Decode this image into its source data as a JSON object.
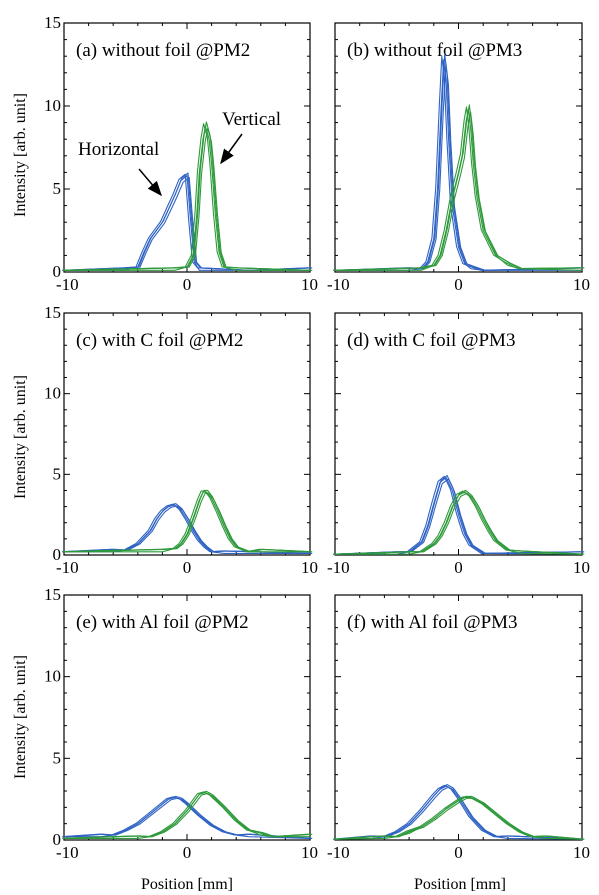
{
  "colors": {
    "horizontal": "#2f63c4",
    "vertical": "#2e9a3b",
    "axis": "#000000"
  },
  "ylabel": "Intensity [arb. unit]",
  "xlabel": "Position [mm]",
  "annotations": {
    "horizontal": "Horizontal",
    "vertical": "Vertical"
  },
  "chart_data": [
    {
      "type": "line",
      "label": "(a) without foil @PM2",
      "xlim": [
        -10,
        10
      ],
      "ylim": [
        0,
        15
      ],
      "xticks": [
        "-10",
        "0",
        "10"
      ],
      "yticks": [
        "0",
        "5",
        "10",
        "15"
      ],
      "series": [
        {
          "name": "Horizontal",
          "x": [
            -10,
            -5,
            -4,
            -3.5,
            -3,
            -2.5,
            -2,
            -1.5,
            -1,
            -0.5,
            0,
            0.3,
            0.6,
            1,
            5,
            10
          ],
          "y": [
            0.1,
            0.1,
            0.3,
            1.2,
            2.0,
            2.5,
            3.0,
            3.8,
            4.6,
            5.5,
            5.8,
            3.0,
            0.6,
            0.1,
            0.1,
            0.1
          ]
        },
        {
          "name": "Vertical",
          "x": [
            -10,
            -1,
            0,
            0.5,
            0.8,
            1,
            1.3,
            1.5,
            1.8,
            2,
            2.3,
            2.6,
            3,
            4,
            10
          ],
          "y": [
            0.1,
            0.1,
            0.3,
            1.0,
            3.5,
            6.0,
            8.0,
            8.8,
            8.0,
            6.5,
            3.5,
            1.2,
            0.3,
            0.1,
            0.1
          ]
        }
      ]
    },
    {
      "type": "line",
      "label": "(b) without foil @PM3",
      "xlim": [
        -10,
        10
      ],
      "ylim": [
        0,
        15
      ],
      "xticks": [
        "-10",
        "0",
        "10"
      ],
      "yticks": [],
      "series": [
        {
          "name": "Horizontal",
          "x": [
            -10,
            -4,
            -3,
            -2.5,
            -2,
            -1.7,
            -1.4,
            -1.2,
            -1,
            -0.8,
            -0.5,
            0,
            0.5,
            1,
            2,
            10
          ],
          "y": [
            0.1,
            0.1,
            0.2,
            0.6,
            2.0,
            5.0,
            10.0,
            12.8,
            11.5,
            8.0,
            4.0,
            1.5,
            0.5,
            0.2,
            0.1,
            0.1
          ]
        },
        {
          "name": "Vertical",
          "x": [
            -10,
            -3,
            -2,
            -1.5,
            -1,
            -0.5,
            0,
            0.3,
            0.6,
            0.8,
            1,
            1.2,
            1.5,
            2,
            3,
            4,
            5,
            10
          ],
          "y": [
            0.1,
            0.1,
            0.4,
            1.0,
            2.5,
            4.5,
            6.0,
            7.0,
            9.0,
            9.8,
            8.5,
            6.5,
            4.5,
            2.5,
            1.0,
            0.4,
            0.2,
            0.1
          ]
        }
      ]
    },
    {
      "type": "line",
      "label": "(c) with C foil @PM2",
      "xlim": [
        -10,
        10
      ],
      "ylim": [
        0,
        15
      ],
      "xticks": [
        "-10",
        "0",
        "10"
      ],
      "yticks": [
        "0",
        "5",
        "10",
        "15"
      ],
      "series": [
        {
          "name": "Horizontal",
          "x": [
            -10,
            -6,
            -5,
            -4,
            -3,
            -2.5,
            -2,
            -1.5,
            -1,
            -0.5,
            0,
            0.5,
            1,
            1.5,
            2,
            3,
            10
          ],
          "y": [
            0.2,
            0.2,
            0.3,
            0.7,
            1.5,
            2.2,
            2.7,
            3.0,
            3.1,
            2.8,
            2.2,
            1.5,
            0.9,
            0.5,
            0.2,
            0.1,
            0.1
          ]
        },
        {
          "name": "Vertical",
          "x": [
            -10,
            -2,
            -1,
            -0.5,
            0,
            0.5,
            1,
            1.3,
            1.6,
            2,
            2.5,
            3,
            3.5,
            4,
            5,
            6,
            10
          ],
          "y": [
            0.2,
            0.2,
            0.4,
            0.7,
            1.3,
            2.3,
            3.4,
            3.9,
            3.9,
            3.5,
            2.7,
            1.8,
            1.0,
            0.5,
            0.2,
            0.2,
            0.2
          ]
        }
      ]
    },
    {
      "type": "line",
      "label": "(d) with C foil @PM3",
      "xlim": [
        -10,
        10
      ],
      "ylim": [
        0,
        15
      ],
      "xticks": [
        "-10",
        "0",
        "10"
      ],
      "yticks": [],
      "series": [
        {
          "name": "Horizontal",
          "x": [
            -10,
            -5,
            -4,
            -3,
            -2.5,
            -2,
            -1.5,
            -1,
            -0.5,
            0,
            0.5,
            1,
            2,
            10
          ],
          "y": [
            0.05,
            0.05,
            0.2,
            0.8,
            1.8,
            3.2,
            4.5,
            4.8,
            4.0,
            2.5,
            1.3,
            0.6,
            0.1,
            0.05
          ]
        },
        {
          "name": "Vertical",
          "x": [
            -10,
            -4,
            -3,
            -2,
            -1.5,
            -1,
            -0.5,
            0,
            0.5,
            1,
            1.5,
            2,
            2.5,
            3,
            4,
            5,
            10
          ],
          "y": [
            0.05,
            0.05,
            0.2,
            0.7,
            1.2,
            2.0,
            3.0,
            3.7,
            3.9,
            3.6,
            3.0,
            2.2,
            1.5,
            0.9,
            0.3,
            0.1,
            0.05
          ]
        }
      ]
    },
    {
      "type": "line",
      "label": "(e) with Al foil @PM2",
      "xlim": [
        -10,
        10
      ],
      "ylim": [
        0,
        15
      ],
      "xticks": [
        "-10",
        "0",
        "10"
      ],
      "yticks": [
        "0",
        "5",
        "10",
        "15"
      ],
      "series": [
        {
          "name": "Horizontal",
          "x": [
            -10,
            -7,
            -6,
            -5,
            -4,
            -3,
            -2,
            -1.5,
            -1,
            -0.5,
            0,
            1,
            2,
            3,
            4,
            5,
            10
          ],
          "y": [
            0.2,
            0.2,
            0.3,
            0.6,
            1.0,
            1.6,
            2.2,
            2.5,
            2.6,
            2.5,
            2.2,
            1.5,
            0.9,
            0.5,
            0.3,
            0.2,
            0.1
          ]
        },
        {
          "name": "Vertical",
          "x": [
            -10,
            -4,
            -3,
            -2,
            -1,
            0,
            0.5,
            1,
            1.5,
            2,
            3,
            4,
            5,
            6,
            7,
            10
          ],
          "y": [
            0.1,
            0.1,
            0.2,
            0.5,
            1.0,
            1.8,
            2.3,
            2.8,
            2.9,
            2.7,
            2.0,
            1.2,
            0.6,
            0.3,
            0.2,
            0.2
          ]
        }
      ]
    },
    {
      "type": "line",
      "label": "(f) with Al foil @PM3",
      "xlim": [
        -10,
        10
      ],
      "ylim": [
        0,
        15
      ],
      "xticks": [
        "-10",
        "0",
        "10"
      ],
      "yticks": [],
      "series": [
        {
          "name": "Horizontal",
          "x": [
            -10,
            -7,
            -6,
            -5,
            -4,
            -3,
            -2,
            -1.5,
            -1,
            -0.5,
            0,
            0.5,
            1,
            2,
            3,
            4,
            10
          ],
          "y": [
            0.05,
            0.1,
            0.2,
            0.5,
            1.0,
            1.8,
            2.7,
            3.1,
            3.3,
            3.1,
            2.6,
            2.0,
            1.4,
            0.6,
            0.2,
            0.1,
            0.05
          ]
        },
        {
          "name": "Vertical",
          "x": [
            -10,
            -6,
            -5,
            -4,
            -3,
            -2,
            -1,
            0,
            0.5,
            1,
            2,
            3,
            4,
            5,
            6,
            7,
            10
          ],
          "y": [
            0.05,
            0.1,
            0.2,
            0.4,
            0.8,
            1.3,
            1.9,
            2.4,
            2.6,
            2.6,
            2.2,
            1.6,
            1.0,
            0.5,
            0.2,
            0.1,
            0.05
          ]
        }
      ]
    }
  ]
}
